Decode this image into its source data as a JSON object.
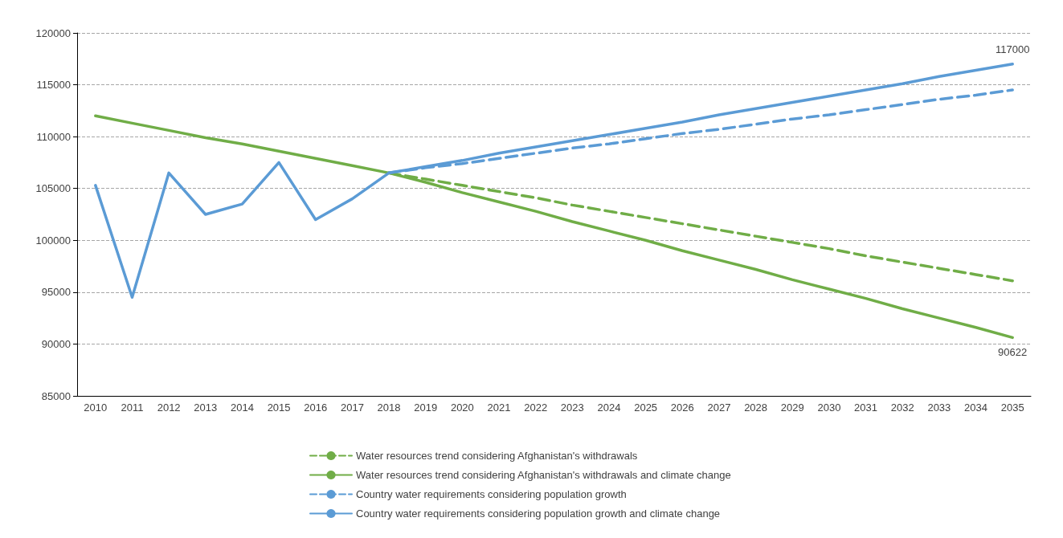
{
  "chart_data": {
    "type": "line",
    "categories": [
      "2010",
      "2011",
      "2012",
      "2013",
      "2014",
      "2015",
      "2016",
      "2017",
      "2018",
      "2019",
      "2020",
      "2021",
      "2022",
      "2023",
      "2024",
      "2025",
      "2026",
      "2027",
      "2028",
      "2029",
      "2030",
      "2031",
      "2032",
      "2033",
      "2034",
      "2035"
    ],
    "ylim": [
      85000,
      120000
    ],
    "yticks": [
      85000,
      90000,
      95000,
      100000,
      105000,
      110000,
      115000,
      120000
    ],
    "grid": "y",
    "legend": "bottom",
    "marker": "none",
    "series": [
      {
        "name": "Water resources trend considering Afghanistan's withdrawals",
        "color": "#70ad47",
        "line_style": "dashed",
        "values": [
          null,
          null,
          null,
          null,
          null,
          null,
          null,
          null,
          106500,
          105900,
          105300,
          104700,
          104100,
          103400,
          102800,
          102200,
          101600,
          101000,
          100400,
          99800,
          99200,
          98500,
          97900,
          97300,
          96700,
          96100
        ]
      },
      {
        "name": "Water resources trend considering Afghanistan's withdrawals and climate change",
        "color": "#70ad47",
        "line_style": "solid",
        "values": [
          112000,
          111300,
          110600,
          109900,
          109300,
          108600,
          107900,
          107200,
          106500,
          105600,
          104600,
          103700,
          102800,
          101800,
          100900,
          100000,
          99000,
          98100,
          97200,
          96200,
          95300,
          94400,
          93400,
          92500,
          91600,
          90622
        ],
        "value_labels": [
          null,
          null,
          null,
          null,
          null,
          null,
          null,
          null,
          null,
          null,
          null,
          null,
          null,
          null,
          null,
          null,
          null,
          null,
          null,
          null,
          null,
          null,
          null,
          null,
          null,
          "90622"
        ]
      },
      {
        "name": "Country water requirements considering population growth",
        "color": "#5b9bd5",
        "line_style": "dashed",
        "values": [
          null,
          null,
          null,
          null,
          null,
          null,
          null,
          null,
          106500,
          107000,
          107400,
          107900,
          108400,
          108900,
          109300,
          109800,
          110300,
          110700,
          111200,
          111700,
          112100,
          112600,
          113100,
          113600,
          114000,
          114500
        ]
      },
      {
        "name": "Country water requirements considering population growth and climate change",
        "color": "#5b9bd5",
        "line_style": "solid",
        "values": [
          105300,
          94500,
          106500,
          102500,
          103500,
          107500,
          102000,
          104000,
          106500,
          107100,
          107700,
          108400,
          109000,
          109600,
          110200,
          110800,
          111400,
          112100,
          112700,
          113300,
          113900,
          114500,
          115100,
          115800,
          116400,
          117000
        ],
        "value_labels": [
          null,
          null,
          null,
          null,
          null,
          null,
          null,
          null,
          null,
          null,
          null,
          null,
          null,
          null,
          null,
          null,
          null,
          null,
          null,
          null,
          null,
          null,
          null,
          null,
          null,
          "117000"
        ]
      }
    ]
  }
}
